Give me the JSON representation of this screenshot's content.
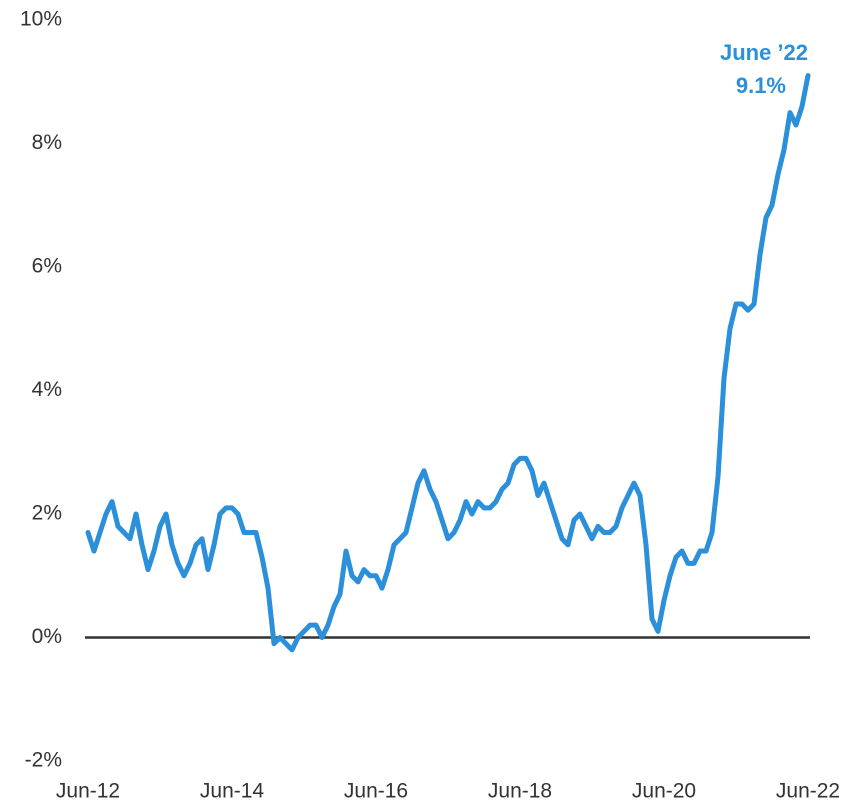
{
  "chart_data": {
    "type": "line",
    "categories": [
      "Jun-12",
      null,
      null,
      null,
      null,
      null,
      null,
      null,
      null,
      null,
      null,
      null,
      null,
      null,
      null,
      null,
      null,
      null,
      null,
      null,
      null,
      null,
      null,
      null,
      "Jun-14",
      null,
      null,
      null,
      null,
      null,
      null,
      null,
      null,
      null,
      null,
      null,
      null,
      null,
      null,
      null,
      null,
      null,
      null,
      null,
      null,
      null,
      null,
      null,
      "Jun-16",
      null,
      null,
      null,
      null,
      null,
      null,
      null,
      null,
      null,
      null,
      null,
      null,
      null,
      null,
      null,
      null,
      null,
      null,
      null,
      null,
      null,
      null,
      null,
      "Jun-18",
      null,
      null,
      null,
      null,
      null,
      null,
      null,
      null,
      null,
      null,
      null,
      null,
      null,
      null,
      null,
      null,
      null,
      null,
      null,
      null,
      null,
      null,
      null,
      "Jun-20",
      null,
      null,
      null,
      null,
      null,
      null,
      null,
      null,
      null,
      null,
      null,
      null,
      null,
      null,
      null,
      null,
      null,
      null,
      null,
      null,
      null,
      null,
      null,
      "Jun-22"
    ],
    "values": [
      1.7,
      1.4,
      1.7,
      2.0,
      2.2,
      1.8,
      1.7,
      1.6,
      2.0,
      1.5,
      1.1,
      1.4,
      1.8,
      2.0,
      1.5,
      1.2,
      1.0,
      1.2,
      1.5,
      1.6,
      1.1,
      1.5,
      2.0,
      2.1,
      2.1,
      2.0,
      1.7,
      1.7,
      1.7,
      1.3,
      0.8,
      -0.1,
      0.0,
      -0.1,
      -0.2,
      0.0,
      0.1,
      0.2,
      0.2,
      0.0,
      0.2,
      0.5,
      0.7,
      1.4,
      1.0,
      0.9,
      1.1,
      1.0,
      1.0,
      0.8,
      1.1,
      1.5,
      1.6,
      1.7,
      2.1,
      2.5,
      2.7,
      2.4,
      2.2,
      1.9,
      1.6,
      1.7,
      1.9,
      2.2,
      2.0,
      2.2,
      2.1,
      2.1,
      2.2,
      2.4,
      2.5,
      2.8,
      2.9,
      2.9,
      2.7,
      2.3,
      2.5,
      2.2,
      1.9,
      1.6,
      1.5,
      1.9,
      2.0,
      1.8,
      1.6,
      1.8,
      1.7,
      1.7,
      1.8,
      2.1,
      2.3,
      2.5,
      2.3,
      1.5,
      0.3,
      0.1,
      0.6,
      1.0,
      1.3,
      1.4,
      1.2,
      1.2,
      1.4,
      1.4,
      1.7,
      2.6,
      4.2,
      5.0,
      5.4,
      5.4,
      5.3,
      5.4,
      6.2,
      6.8,
      7.0,
      7.5,
      7.9,
      8.5,
      8.3,
      8.6,
      9.1
    ],
    "color": "#2b8fd9",
    "ylim": [
      -2,
      10
    ],
    "yticks": [
      {
        "value": -2,
        "label": "-2%"
      },
      {
        "value": 0,
        "label": "0%"
      },
      {
        "value": 2,
        "label": "2%"
      },
      {
        "value": 4,
        "label": "4%"
      },
      {
        "value": 6,
        "label": "6%"
      },
      {
        "value": 8,
        "label": "8%"
      },
      {
        "value": 10,
        "label": "10%"
      }
    ],
    "annotations": [
      "June ’22",
      "9.1%"
    ]
  }
}
